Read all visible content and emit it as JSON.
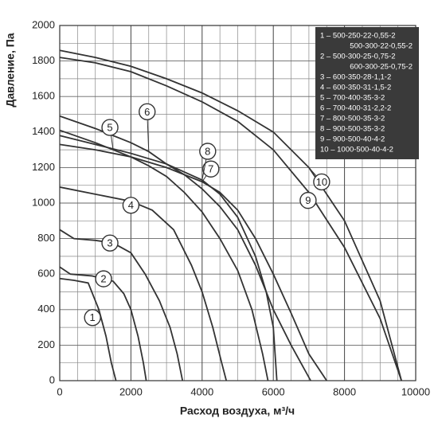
{
  "chart_data": {
    "type": "line",
    "xlabel": "Расход воздуха, м³/ч",
    "ylabel": "Давление, Па",
    "xlim": [
      0,
      10000
    ],
    "ylim": [
      0,
      2000
    ],
    "xticks": [
      0,
      2000,
      4000,
      6000,
      8000,
      10000
    ],
    "yticks": [
      0,
      200,
      400,
      600,
      800,
      1000,
      1200,
      1400,
      1600,
      1800,
      2000
    ],
    "xminorticks": [
      500,
      1000,
      1500,
      2500,
      3000,
      3500,
      4500,
      5000,
      5500,
      6500,
      7000,
      7500,
      8500,
      9000,
      9500
    ],
    "yminorticks": [
      100,
      300,
      500,
      700,
      900,
      1100,
      1300,
      1500,
      1700,
      1900
    ],
    "grid": true,
    "color": "#333333",
    "legend_position": "upper right",
    "series": [
      {
        "name": "1 – 500-250-22-0,55-2",
        "alt_name": "500-300-22-0,55-2",
        "label": "1",
        "x": [
          0,
          400,
          800,
          1100,
          1300,
          1450,
          1580
        ],
        "values": [
          575,
          565,
          550,
          400,
          250,
          100,
          0
        ]
      },
      {
        "name": "2 – 500-300-25-0,75-2",
        "alt_name": "600-300-25-0,75-2",
        "label": "2",
        "x": [
          0,
          300,
          900,
          1500,
          1800,
          2000,
          2200,
          2350,
          2430
        ],
        "values": [
          640,
          600,
          590,
          560,
          490,
          400,
          250,
          100,
          0
        ]
      },
      {
        "name": "3 – 600-350-28-1,1-2",
        "label": "3",
        "x": [
          0,
          400,
          1000,
          1500,
          2000,
          2400,
          2800,
          3100,
          3300,
          3450
        ],
        "values": [
          850,
          800,
          790,
          775,
          720,
          600,
          450,
          300,
          150,
          0
        ]
      },
      {
        "name": "4 – 600-350-31-1,5-2",
        "label": "4",
        "x": [
          0,
          1000,
          2000,
          2600,
          3200,
          3700,
          4000,
          4300,
          4550,
          4680
        ],
        "values": [
          1090,
          1050,
          1010,
          960,
          850,
          650,
          500,
          300,
          100,
          0
        ]
      },
      {
        "name": "5 – 700-400-35-3-2",
        "label": "5",
        "x": [
          0,
          1000,
          1500,
          2000,
          2500,
          3000,
          3500,
          4000,
          4500,
          5000,
          5400,
          5700,
          5850
        ],
        "values": [
          1410,
          1340,
          1300,
          1260,
          1210,
          1150,
          1060,
          950,
          800,
          620,
          400,
          150,
          0
        ]
      },
      {
        "name": "6 – 700-400-31-2,2-2",
        "label": "6",
        "x": [
          0,
          1000,
          2000,
          2500,
          3000,
          3500,
          4000,
          4500,
          5000,
          5500,
          6000,
          6500,
          7050
        ],
        "values": [
          1490,
          1420,
          1340,
          1290,
          1220,
          1160,
          1080,
          980,
          850,
          650,
          400,
          200,
          0
        ]
      },
      {
        "name": "7 – 800-500-35-3-2",
        "label": "7",
        "x": [
          0,
          1000,
          2000,
          3000,
          4000,
          4500,
          5000,
          5500,
          6000,
          6500,
          7000,
          7500
        ],
        "values": [
          1330,
          1300,
          1260,
          1200,
          1120,
          1060,
          960,
          800,
          600,
          380,
          150,
          0
        ]
      },
      {
        "name": "8 – 900-500-35-3-2",
        "label": "8",
        "x": [
          0,
          1000,
          2000,
          3000,
          4000,
          4500,
          5000,
          5500,
          5800,
          6000,
          6100
        ],
        "values": [
          1380,
          1330,
          1280,
          1220,
          1130,
          1050,
          920,
          700,
          500,
          300,
          0
        ]
      },
      {
        "name": "9 – 900-500-40-4-2",
        "label": "9",
        "x": [
          0,
          1000,
          2000,
          3000,
          4000,
          5000,
          6000,
          7000,
          8000,
          9000,
          9600
        ],
        "values": [
          1820,
          1790,
          1740,
          1660,
          1570,
          1460,
          1300,
          1060,
          750,
          350,
          0
        ]
      },
      {
        "name": "10 – 1000-500-40-4-2",
        "label": "10",
        "x": [
          0,
          1000,
          2000,
          3000,
          4000,
          5000,
          6000,
          7000,
          8000,
          9000,
          9600
        ],
        "values": [
          1860,
          1820,
          1770,
          1700,
          1620,
          1520,
          1400,
          1200,
          900,
          450,
          0
        ]
      }
    ]
  }
}
